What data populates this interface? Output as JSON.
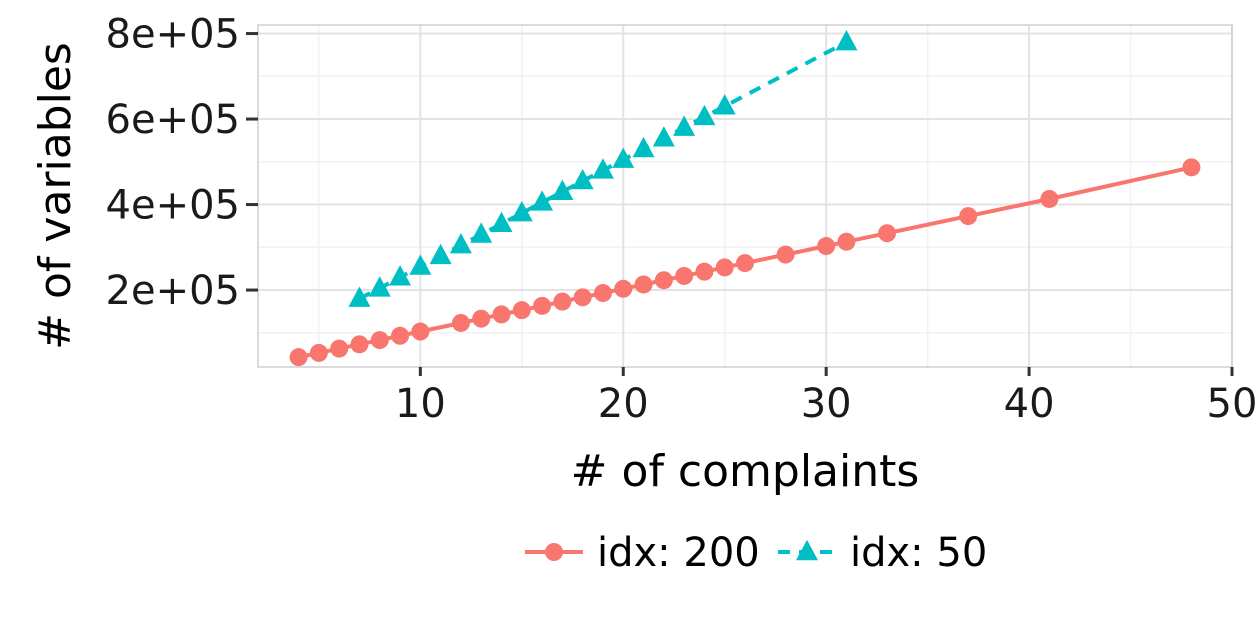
{
  "chart_data": {
    "type": "line",
    "xlabel": "# of complaints",
    "ylabel": "# of variables",
    "xlim": [
      2,
      50
    ],
    "ylim": [
      20000,
      820000
    ],
    "x_ticks": [
      10,
      20,
      30,
      40,
      50
    ],
    "x_tick_labels": [
      "10",
      "20",
      "30",
      "40",
      "50"
    ],
    "y_ticks": [
      200000,
      400000,
      600000,
      800000
    ],
    "y_tick_labels": [
      "2e+05",
      "4e+05",
      "6e+05",
      "8e+05"
    ],
    "grid": true,
    "legend_position": "bottom",
    "series": [
      {
        "name": "idx: 200",
        "color": "#F8766D",
        "line_style": "solid",
        "marker": "circle",
        "points": [
          [
            4,
            43000
          ],
          [
            5,
            53000
          ],
          [
            6,
            63000
          ],
          [
            7,
            73000
          ],
          [
            8,
            83000
          ],
          [
            9,
            93000
          ],
          [
            10,
            103000
          ],
          [
            12,
            123000
          ],
          [
            13,
            133000
          ],
          [
            14,
            143000
          ],
          [
            15,
            153000
          ],
          [
            16,
            163000
          ],
          [
            17,
            173000
          ],
          [
            18,
            183000
          ],
          [
            19,
            193000
          ],
          [
            20,
            203000
          ],
          [
            21,
            213000
          ],
          [
            22,
            223000
          ],
          [
            23,
            233000
          ],
          [
            24,
            243000
          ],
          [
            25,
            253000
          ],
          [
            26,
            263000
          ],
          [
            28,
            283000
          ],
          [
            30,
            303000
          ],
          [
            31,
            313000
          ],
          [
            33,
            333000
          ],
          [
            37,
            373000
          ],
          [
            41,
            413000
          ],
          [
            48,
            487000
          ]
        ]
      },
      {
        "name": "idx: 50",
        "color": "#00BFC4",
        "line_style": "dashed",
        "marker": "triangle",
        "points": [
          [
            7,
            180000
          ],
          [
            8,
            204000
          ],
          [
            9,
            230000
          ],
          [
            10,
            255000
          ],
          [
            11,
            280000
          ],
          [
            12,
            305000
          ],
          [
            13,
            330000
          ],
          [
            14,
            355000
          ],
          [
            15,
            380000
          ],
          [
            16,
            405000
          ],
          [
            17,
            430000
          ],
          [
            18,
            455000
          ],
          [
            19,
            480000
          ],
          [
            20,
            505000
          ],
          [
            21,
            530000
          ],
          [
            22,
            555000
          ],
          [
            23,
            580000
          ],
          [
            24,
            605000
          ],
          [
            25,
            630000
          ],
          [
            31,
            780000
          ]
        ]
      }
    ]
  }
}
